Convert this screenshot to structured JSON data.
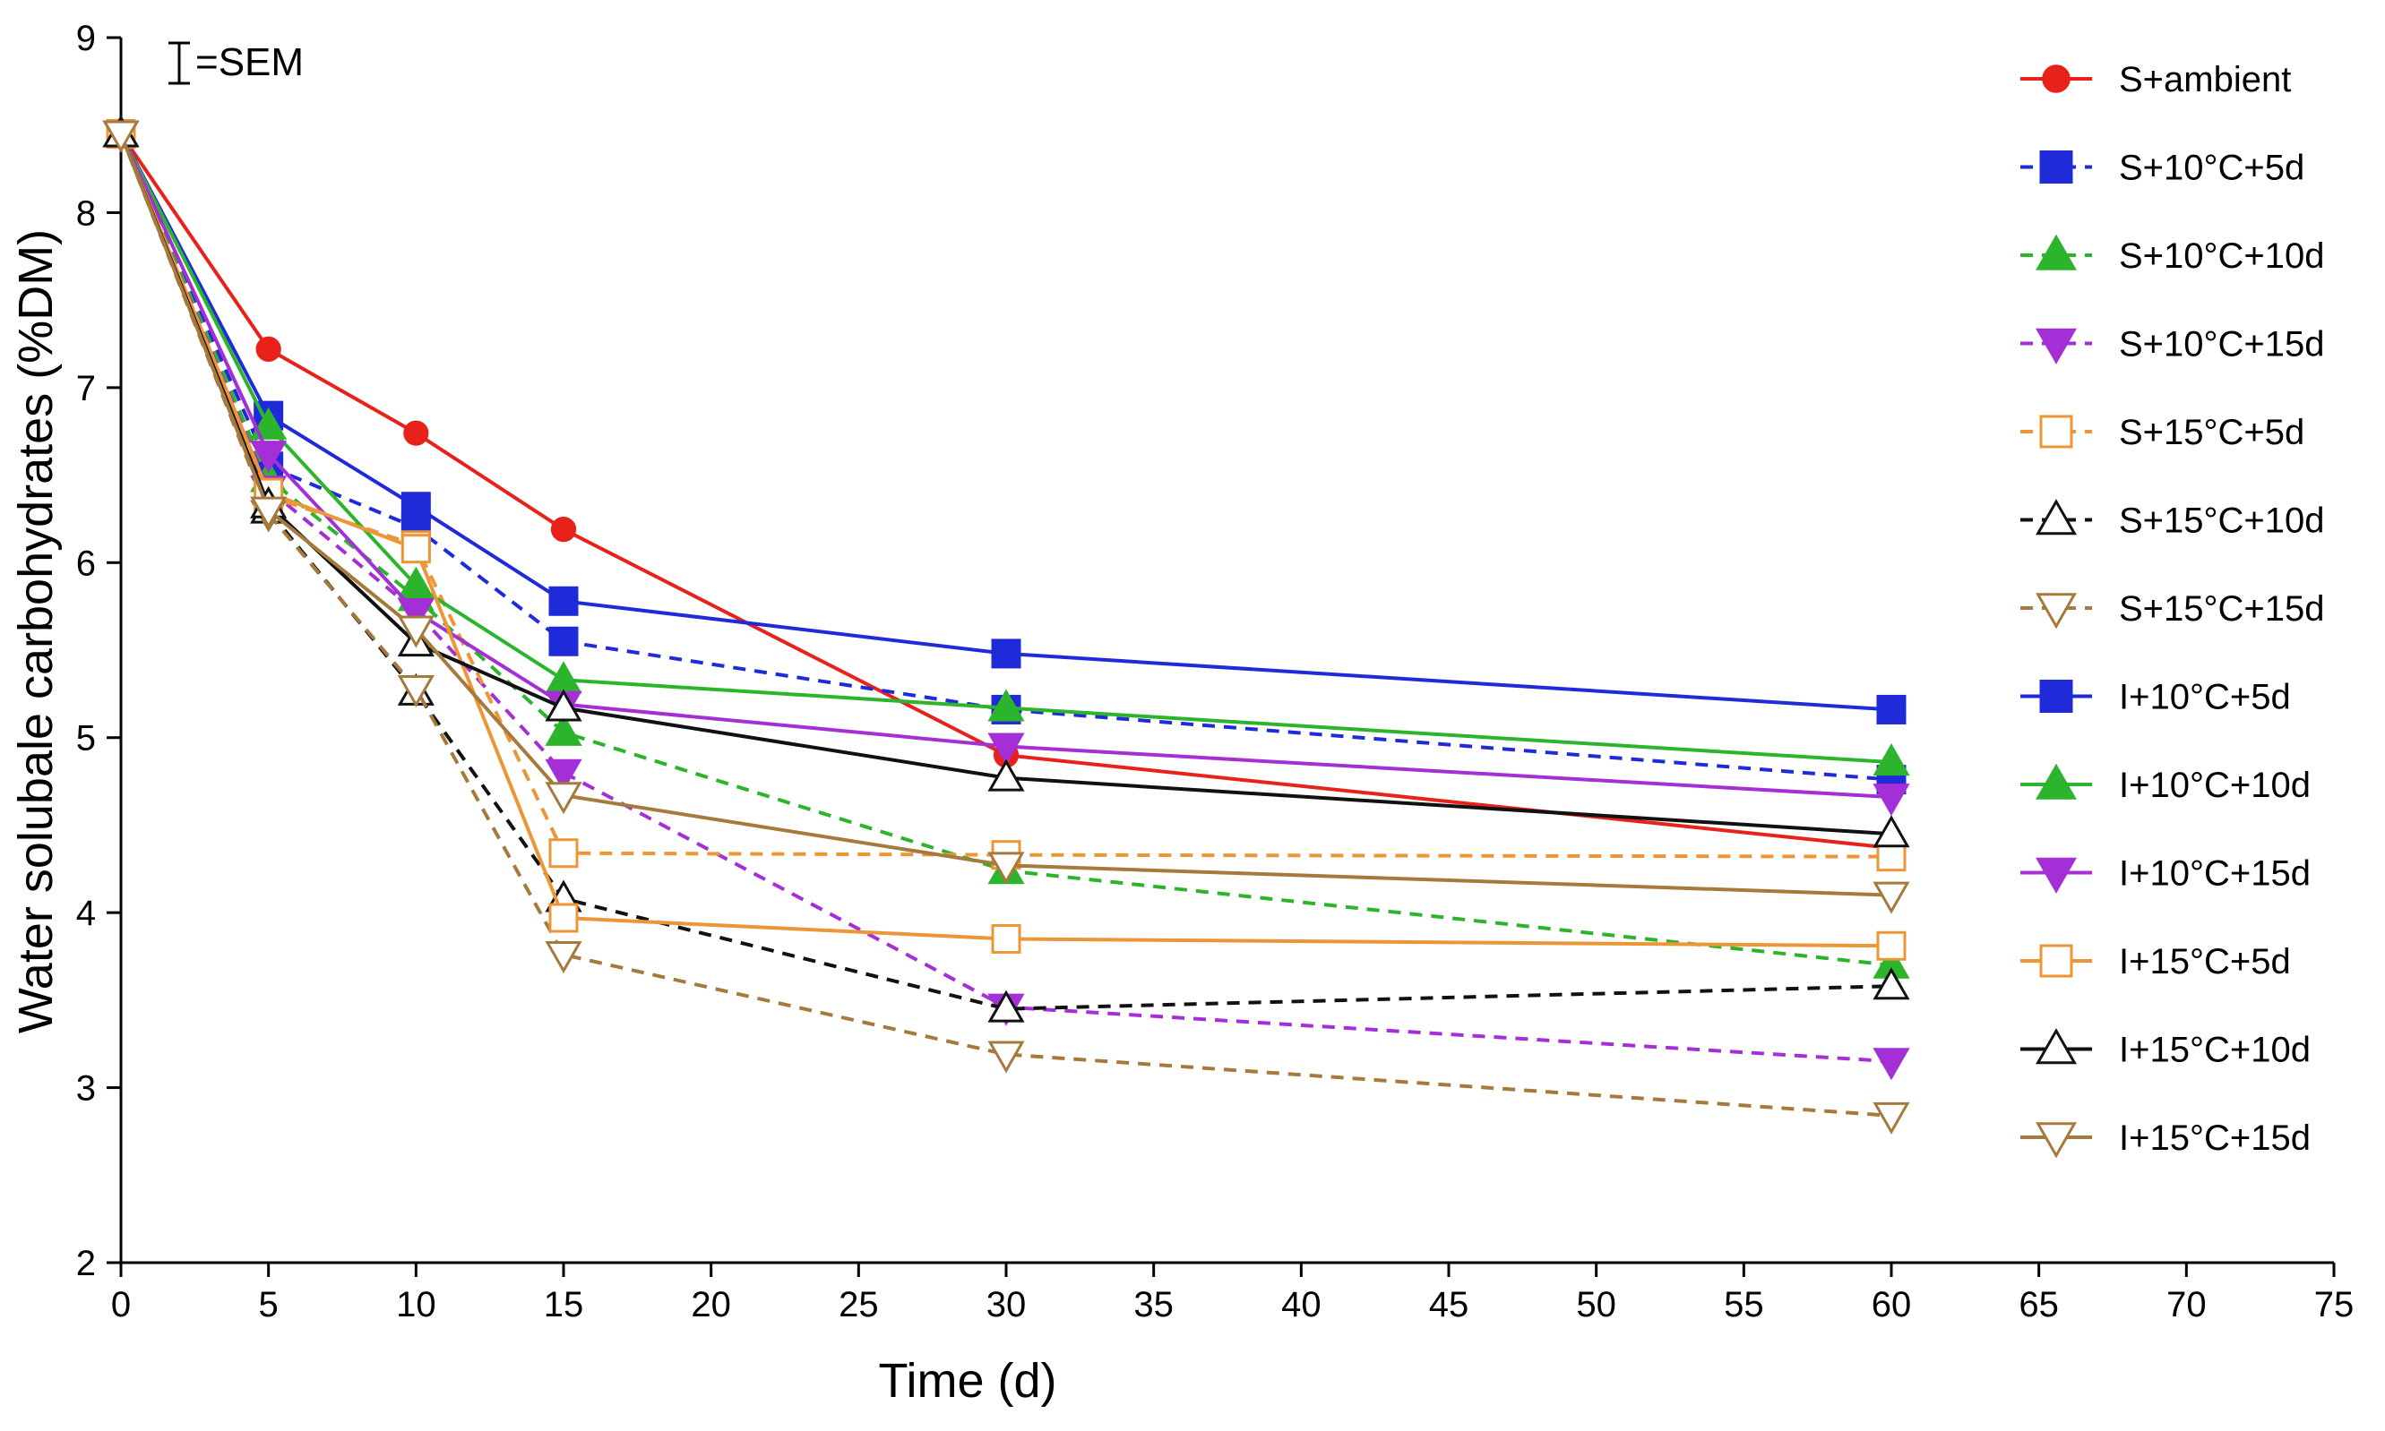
{
  "chart_data": {
    "type": "line",
    "title": "",
    "xlabel": "Time (d)",
    "ylabel": "Water solubale carbohydrates (%DM)",
    "xlim": [
      0,
      75
    ],
    "ylim": [
      2,
      9
    ],
    "xticks": [
      "0",
      "5",
      "10",
      "15",
      "20",
      "25",
      "30",
      "35",
      "40",
      "45",
      "50",
      "55",
      "60",
      "65",
      "70",
      "75"
    ],
    "yticks": [
      "2",
      "3",
      "4",
      "5",
      "6",
      "7",
      "8",
      "9"
    ],
    "sem_note": "=SEM",
    "grid": false,
    "legend_position": "right",
    "x": [
      0,
      5,
      10,
      15,
      30,
      60
    ],
    "series": [
      {
        "name": "S+ambient",
        "color": "#e8211b",
        "dashed": false,
        "marker": "circle",
        "filled": true,
        "values": [
          8.45,
          7.22,
          6.74,
          6.19,
          4.9,
          4.37
        ]
      },
      {
        "name": "S+10°C+5d",
        "color": "#1f2bd9",
        "dashed": true,
        "marker": "square",
        "filled": true,
        "values": [
          8.45,
          6.55,
          6.2,
          5.55,
          5.16,
          4.76
        ]
      },
      {
        "name": "S+10°C+10d",
        "color": "#2cb52c",
        "dashed": true,
        "marker": "triangle-up",
        "filled": true,
        "values": [
          8.45,
          6.48,
          5.8,
          5.03,
          4.24,
          3.7
        ]
      },
      {
        "name": "S+10°C+15d",
        "color": "#a52fd6",
        "dashed": true,
        "marker": "triangle-down",
        "filled": true,
        "values": [
          8.45,
          6.42,
          5.72,
          4.8,
          3.46,
          3.15
        ]
      },
      {
        "name": "S+15°C+5d",
        "color": "#ec9636",
        "dashed": true,
        "marker": "square",
        "filled": false,
        "values": [
          8.45,
          6.38,
          6.1,
          4.34,
          4.33,
          4.32
        ]
      },
      {
        "name": "S+15°C+10d",
        "color": "#111111",
        "dashed": true,
        "marker": "triangle-up",
        "filled": false,
        "values": [
          8.45,
          6.3,
          5.26,
          4.08,
          3.45,
          3.58
        ]
      },
      {
        "name": "S+15°C+15d",
        "color": "#a57a3c",
        "dashed": true,
        "marker": "triangle-down",
        "filled": false,
        "values": [
          8.45,
          6.28,
          5.28,
          3.76,
          3.19,
          2.84
        ]
      },
      {
        "name": "I+10°C+5d",
        "color": "#1f2bd9",
        "dashed": false,
        "marker": "square",
        "filled": true,
        "values": [
          8.45,
          6.84,
          6.32,
          5.78,
          5.48,
          5.16
        ]
      },
      {
        "name": "I+10°C+10d",
        "color": "#2cb52c",
        "dashed": false,
        "marker": "triangle-up",
        "filled": true,
        "values": [
          8.45,
          6.78,
          5.87,
          5.33,
          5.17,
          4.86
        ]
      },
      {
        "name": "I+10°C+15d",
        "color": "#a52fd6",
        "dashed": false,
        "marker": "triangle-down",
        "filled": true,
        "values": [
          8.45,
          6.62,
          5.72,
          5.19,
          4.95,
          4.66
        ]
      },
      {
        "name": "I+15°C+5d",
        "color": "#ec9636",
        "dashed": false,
        "marker": "square",
        "filled": false,
        "values": [
          8.45,
          6.4,
          6.08,
          3.97,
          3.85,
          3.81
        ]
      },
      {
        "name": "I+15°C+10d",
        "color": "#111111",
        "dashed": false,
        "marker": "triangle-up",
        "filled": false,
        "values": [
          8.45,
          6.33,
          5.54,
          5.17,
          4.77,
          4.45
        ]
      },
      {
        "name": "I+15°C+15d",
        "color": "#a57a3c",
        "dashed": false,
        "marker": "triangle-down",
        "filled": false,
        "values": [
          8.45,
          6.3,
          5.62,
          4.67,
          4.27,
          4.1
        ]
      }
    ]
  }
}
